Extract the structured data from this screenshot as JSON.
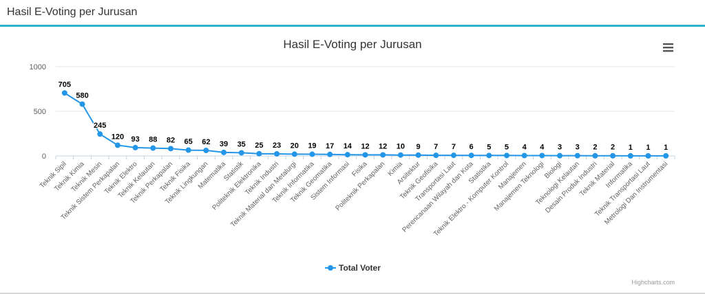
{
  "panel": {
    "title": "Hasil E-Voting per Jurusan"
  },
  "chart_menu_icon": "hamburger-menu-icon",
  "credits": "Highcharts.com",
  "colors": {
    "series": "#2496e8",
    "accent": "#2fb1d6"
  },
  "chart_data": {
    "type": "line",
    "title": "Hasil E-Voting per Jurusan",
    "xlabel": "",
    "ylabel": "",
    "ylim": [
      0,
      1000
    ],
    "yticks": [
      0,
      500,
      1000
    ],
    "grid": true,
    "legend_position": "bottom-center",
    "categories": [
      "Teknik Sipil",
      "Teknik Kimia",
      "Teknik Mesin",
      "Teknik Sistem Perkapalan",
      "Teknik Elektro",
      "Teknik Kelautan",
      "Teknik Perkapalan",
      "Teknik Fisika",
      "Teknik Lingkungan",
      "Matematika",
      "Statistik",
      "Politeknik Elektronika",
      "Teknik Industri",
      "Teknik Material dan Metalurgi",
      "Teknik Informatika",
      "Teknik Geomatika",
      "Sistem Informasi",
      "Fisika",
      "Politeknik Perkapalan",
      "Kimia",
      "Arsitektur",
      "Teknik Geofisika",
      "Transportasi Laut",
      "Perencanaan Wilayah dan Kota",
      "Statistika",
      "Teknik Elektro - Komputer Kontrol",
      "Manajemen",
      "Manajemen Teknologi",
      "Biologi",
      "Teknologi Kelautan",
      "Desain Produk Industri",
      "Teknik Material",
      "Informatika",
      "Teknik Transportasi Laut",
      "Metrologi Dan Instrumentasi"
    ],
    "series": [
      {
        "name": "Total Voter",
        "values": [
          705,
          580,
          245,
          120,
          93,
          88,
          82,
          65,
          62,
          39,
          35,
          25,
          23,
          20,
          19,
          17,
          14,
          12,
          12,
          10,
          9,
          7,
          7,
          6,
          5,
          5,
          4,
          4,
          3,
          3,
          2,
          2,
          1,
          1,
          1
        ]
      }
    ]
  }
}
